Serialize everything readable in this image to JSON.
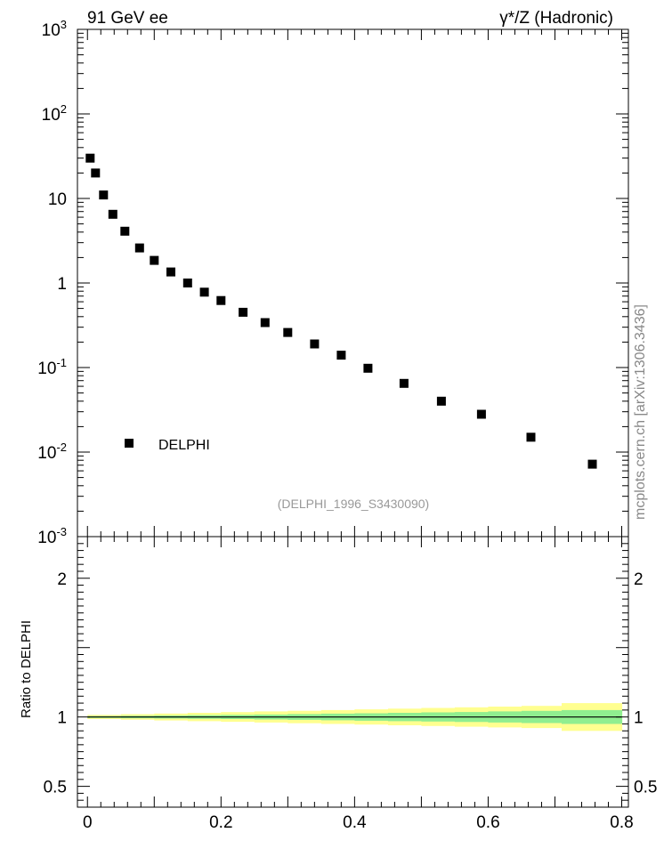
{
  "header": {
    "left_label": "91 GeV ee",
    "right_label": "γ*/Z (Hadronic)"
  },
  "side_label": "mcplots.cern.ch [arXiv:1306.3436]",
  "watermark": "(DELPHI_1996_S3430090)",
  "colors": {
    "marker": "#000000",
    "band_inner": "#90ee90",
    "band_outer": "#ffff90",
    "watermark": "#999999"
  },
  "chart_data": [
    {
      "type": "scatter",
      "title": "",
      "xlabel": "",
      "ylabel": "",
      "log_y": true,
      "xlim": [
        -0.015,
        0.81
      ],
      "ylim": [
        0.001,
        1000
      ],
      "y_tick_labels": [
        "10^-3",
        "10^-2",
        "10^-1",
        "1",
        "10",
        "10^2",
        "10^3"
      ],
      "legend": {
        "position": "lower-left",
        "entries": [
          "DELPHI"
        ]
      },
      "series": [
        {
          "name": "DELPHI",
          "marker": "square",
          "x": [
            0.004,
            0.012,
            0.024,
            0.038,
            0.056,
            0.078,
            0.1,
            0.125,
            0.15,
            0.175,
            0.2,
            0.233,
            0.266,
            0.3,
            0.34,
            0.38,
            0.42,
            0.474,
            0.53,
            0.59,
            0.664,
            0.756
          ],
          "y": [
            30,
            20,
            11,
            6.5,
            4.1,
            2.6,
            1.85,
            1.35,
            1.0,
            0.78,
            0.62,
            0.45,
            0.34,
            0.26,
            0.19,
            0.14,
            0.098,
            0.065,
            0.04,
            0.028,
            0.015,
            0.0072
          ]
        }
      ]
    },
    {
      "type": "area",
      "title": "",
      "xlabel": "",
      "ylabel": "Ratio to DELPHI",
      "xlim": [
        -0.015,
        0.81
      ],
      "ylim": [
        0.35,
        2.3
      ],
      "x_ticks": [
        "0",
        "0.2",
        "0.4",
        "0.6",
        "0.8"
      ],
      "y_ticks_left": [
        "0.5",
        "1",
        "2"
      ],
      "y_ticks_right": [
        "0.5",
        "1",
        "2"
      ],
      "bands": [
        {
          "name": "",
          "kind": "outer",
          "x_edges": [
            0,
            0.05,
            0.1,
            0.15,
            0.2,
            0.25,
            0.3,
            0.35,
            0.4,
            0.45,
            0.5,
            0.55,
            0.6,
            0.65,
            0.71,
            0.8
          ],
          "half_width": [
            0.015,
            0.02,
            0.025,
            0.03,
            0.035,
            0.04,
            0.045,
            0.05,
            0.055,
            0.06,
            0.065,
            0.07,
            0.075,
            0.08,
            0.1
          ]
        },
        {
          "name": "",
          "kind": "inner",
          "x_edges": [
            0,
            0.05,
            0.1,
            0.15,
            0.2,
            0.25,
            0.3,
            0.35,
            0.4,
            0.45,
            0.5,
            0.55,
            0.6,
            0.65,
            0.71,
            0.8
          ],
          "half_width": [
            0.007,
            0.009,
            0.011,
            0.013,
            0.015,
            0.018,
            0.021,
            0.024,
            0.027,
            0.03,
            0.033,
            0.036,
            0.04,
            0.044,
            0.05
          ]
        }
      ],
      "reference_line": 1
    }
  ]
}
